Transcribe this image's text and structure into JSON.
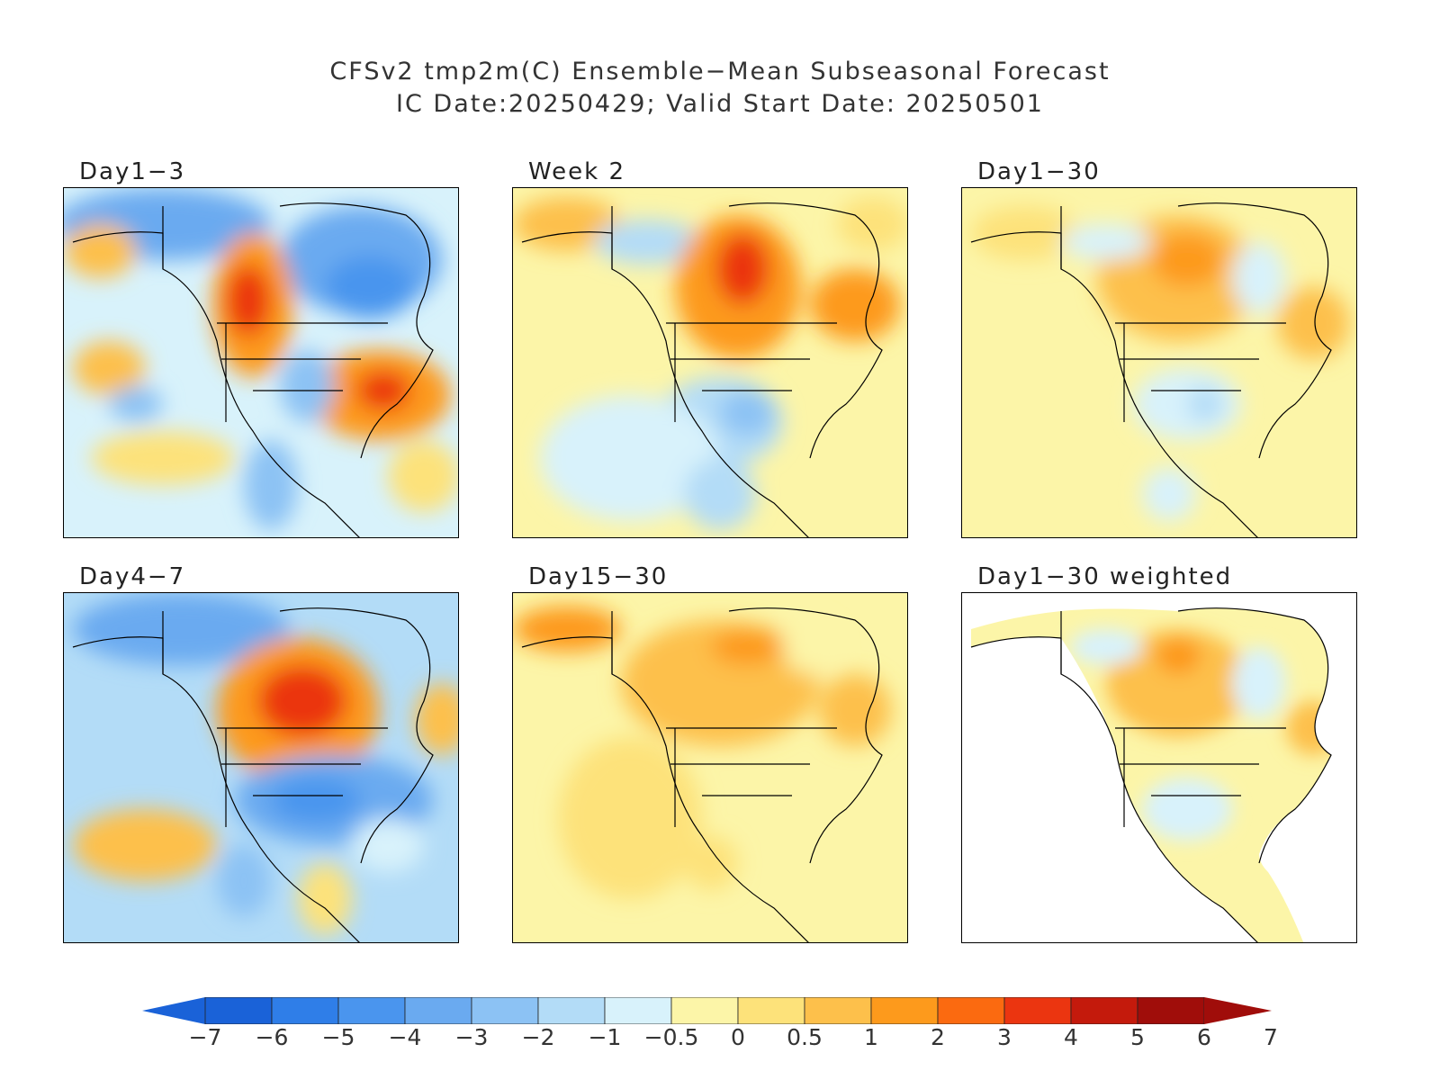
{
  "title": {
    "line1": "CFSv2 tmp2m(C) Ensemble−Mean Subseasonal Forecast",
    "line2": "IC Date:20250429; Valid Start Date: 20250501"
  },
  "panels": [
    {
      "id": "day1-3",
      "label": "Day1−3"
    },
    {
      "id": "week2",
      "label": "Week 2"
    },
    {
      "id": "day1-30",
      "label": "Day1−30"
    },
    {
      "id": "day4-7",
      "label": "Day4−7"
    },
    {
      "id": "day15-30",
      "label": "Day15−30"
    },
    {
      "id": "day1-30-weighted",
      "label": "Day1−30 weighted"
    }
  ],
  "colorbar": {
    "tick_labels": [
      "−7",
      "−6",
      "−5",
      "−4",
      "−3",
      "−2",
      "−1",
      "−0.5",
      "0",
      "0.5",
      "1",
      "2",
      "3",
      "4",
      "5",
      "6",
      "7"
    ],
    "colors": [
      "#1a62d8",
      "#2f7ee8",
      "#4a95ee",
      "#6aaaf0",
      "#8cc2f4",
      "#b3dcf7",
      "#d8f2fb",
      "#fcf5a8",
      "#fde27a",
      "#fdc04b",
      "#fd9a1c",
      "#fb6a10",
      "#eb3510",
      "#c41a0c",
      "#a00d0a"
    ],
    "left_arrow_color": "#1a62d8",
    "right_arrow_color": "#a00d0a"
  }
}
